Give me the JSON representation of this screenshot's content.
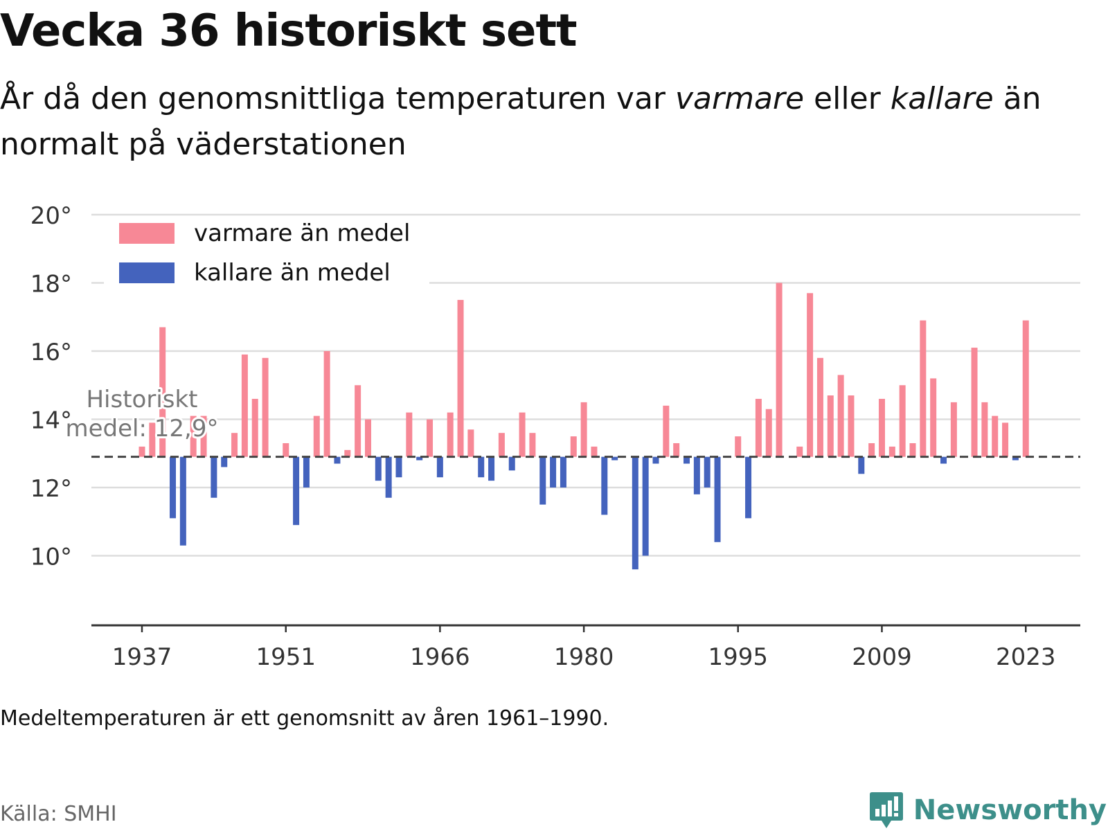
{
  "title": "Vecka 36 historiskt sett",
  "subtitle": {
    "part1": "År då den genomsnittliga temperaturen var ",
    "warm_word": "varmare",
    "part2": " eller ",
    "cold_word": "kallare",
    "part3": " än normalt på väderstationen"
  },
  "note": "Medeltemperaturen är ett genomsnitt av åren 1961–1990.",
  "source": "Källa: SMHI",
  "brand": "Newsworthy",
  "colors": {
    "warm": "#f78896",
    "cold": "#4463bd",
    "grid": "#dddddd",
    "axis": "#333333",
    "mean_line": "#444444",
    "brand": "#3d8f8a"
  },
  "chart_data": {
    "type": "bar",
    "ylim": [
      8,
      20.5
    ],
    "y_ticks": [
      10,
      12,
      14,
      16,
      18,
      20
    ],
    "y_tick_labels": [
      "10°",
      "12°",
      "14°",
      "16°",
      "18°",
      "20°"
    ],
    "x_ticks": [
      1937,
      1951,
      1966,
      1980,
      1995,
      2009,
      2023
    ],
    "x_tick_labels": [
      "1937",
      "1951",
      "1966",
      "1980",
      "1995",
      "2009",
      "2023"
    ],
    "baseline": 12.9,
    "baseline_label_line1": "Historiskt",
    "baseline_label_line2": "medel: 12,9°",
    "legend": {
      "placement": "top-left",
      "warm": "varmare än medel",
      "cold": "kallare än medel"
    },
    "x": [
      1937,
      1938,
      1939,
      1940,
      1941,
      1942,
      1943,
      1944,
      1945,
      1946,
      1947,
      1948,
      1949,
      1950,
      1951,
      1952,
      1953,
      1954,
      1955,
      1956,
      1957,
      1958,
      1959,
      1960,
      1961,
      1962,
      1963,
      1964,
      1965,
      1966,
      1967,
      1968,
      1969,
      1970,
      1971,
      1972,
      1973,
      1974,
      1975,
      1976,
      1977,
      1978,
      1979,
      1980,
      1981,
      1982,
      1983,
      1984,
      1985,
      1986,
      1987,
      1988,
      1989,
      1990,
      1991,
      1992,
      1993,
      1994,
      1995,
      1996,
      1997,
      1998,
      1999,
      2000,
      2001,
      2002,
      2003,
      2004,
      2005,
      2006,
      2007,
      2008,
      2009,
      2010,
      2011,
      2012,
      2013,
      2014,
      2015,
      2016,
      2017,
      2018,
      2019,
      2020,
      2021,
      2022,
      2023
    ],
    "values": [
      13.2,
      13.9,
      16.7,
      11.1,
      10.3,
      14.1,
      14.1,
      11.7,
      12.6,
      13.6,
      15.9,
      14.6,
      15.8,
      null,
      13.3,
      10.9,
      12.0,
      14.1,
      16.0,
      12.7,
      13.1,
      15.0,
      14.0,
      12.2,
      11.7,
      12.3,
      14.2,
      12.8,
      14.0,
      12.3,
      14.2,
      17.5,
      13.7,
      12.3,
      12.2,
      13.6,
      12.5,
      14.2,
      13.6,
      11.5,
      12.0,
      12.0,
      13.5,
      14.5,
      13.2,
      11.2,
      12.8,
      null,
      9.6,
      10.0,
      12.7,
      14.4,
      13.3,
      12.7,
      11.8,
      12.0,
      10.4,
      null,
      13.5,
      11.1,
      14.6,
      14.3,
      18.0,
      null,
      13.2,
      17.7,
      15.8,
      14.7,
      15.3,
      14.7,
      12.4,
      13.3,
      14.6,
      13.2,
      15.0,
      13.3,
      16.9,
      15.2,
      12.7,
      14.5,
      null,
      16.1,
      14.5,
      14.1,
      13.9,
      12.8,
      16.9
    ]
  }
}
